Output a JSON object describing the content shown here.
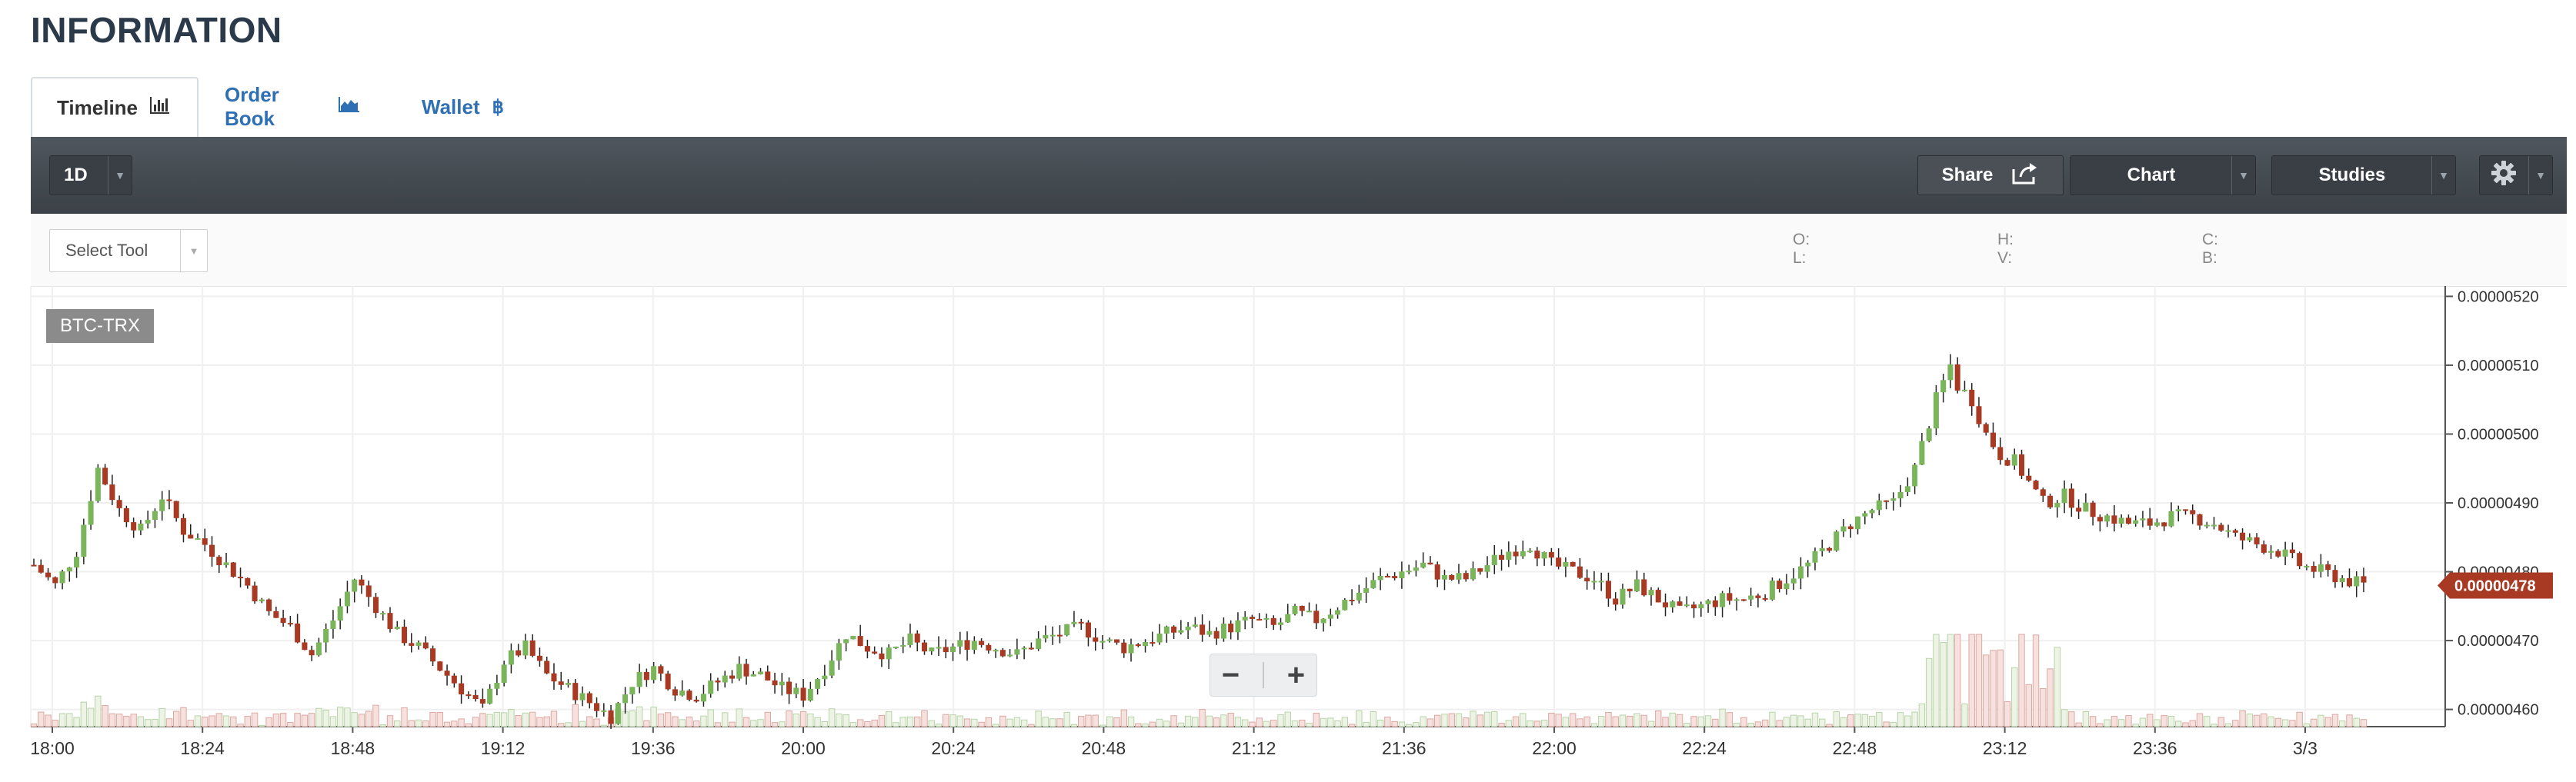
{
  "page": {
    "title": "INFORMATION"
  },
  "tabs": [
    {
      "label": "Timeline",
      "icon": "bar-chart-icon",
      "active": true
    },
    {
      "label": "Order Book",
      "icon": "area-chart-icon",
      "active": false
    },
    {
      "label": "Wallet",
      "icon": "bitcoin-icon",
      "active": false
    }
  ],
  "toolbar": {
    "period": "1D",
    "share": "Share",
    "chart": "Chart",
    "studies": "Studies"
  },
  "subbar": {
    "select_tool": "Select Tool",
    "ohlc": {
      "o": "O:",
      "h": "H:",
      "c": "C:",
      "l": "L:",
      "v": "V:",
      "b": "B:"
    }
  },
  "chart_data": {
    "type": "candlestick",
    "symbol": "BTC-TRX",
    "current_price": "0.00000478",
    "y_ticks": [
      "0.00000520",
      "0.00000510",
      "0.00000500",
      "0.00000490",
      "0.00000480",
      "0.00000470",
      "0.00000460"
    ],
    "ylim": [
      4.575e-06,
      5.215e-06
    ],
    "x_ticks": [
      "18:00",
      "18:24",
      "18:48",
      "19:12",
      "19:36",
      "20:00",
      "20:24",
      "20:48",
      "21:12",
      "21:36",
      "22:00",
      "22:24",
      "22:48",
      "23:12",
      "23:36",
      "3/3"
    ],
    "close_path": [
      [
        0,
        481
      ],
      [
        3,
        478
      ],
      [
        6,
        483
      ],
      [
        9,
        495
      ],
      [
        12,
        489
      ],
      [
        15,
        486
      ],
      [
        18,
        491
      ],
      [
        21,
        486
      ],
      [
        24,
        484
      ],
      [
        27,
        481
      ],
      [
        30,
        478
      ],
      [
        33,
        474
      ],
      [
        36,
        472
      ],
      [
        39,
        468
      ],
      [
        42,
        473
      ],
      [
        45,
        479
      ],
      [
        48,
        475
      ],
      [
        51,
        471
      ],
      [
        54,
        469
      ],
      [
        57,
        466
      ],
      [
        60,
        463
      ],
      [
        63,
        460
      ],
      [
        66,
        467
      ],
      [
        69,
        469
      ],
      [
        72,
        465
      ],
      [
        75,
        463
      ],
      [
        78,
        461
      ],
      [
        81,
        459
      ],
      [
        84,
        464
      ],
      [
        87,
        466
      ],
      [
        90,
        463
      ],
      [
        93,
        462
      ],
      [
        96,
        464
      ],
      [
        99,
        466
      ],
      [
        102,
        465
      ],
      [
        105,
        463
      ],
      [
        108,
        462
      ],
      [
        111,
        466
      ],
      [
        114,
        471
      ],
      [
        117,
        469
      ],
      [
        120,
        468
      ],
      [
        123,
        470
      ],
      [
        126,
        468
      ],
      [
        129,
        469
      ],
      [
        132,
        470
      ],
      [
        135,
        469
      ],
      [
        138,
        468
      ],
      [
        141,
        470
      ],
      [
        144,
        471
      ],
      [
        147,
        472
      ],
      [
        150,
        470
      ],
      [
        153,
        469
      ],
      [
        156,
        470
      ],
      [
        159,
        471
      ],
      [
        162,
        472
      ],
      [
        165,
        471
      ],
      [
        168,
        472
      ],
      [
        171,
        473
      ],
      [
        174,
        472
      ],
      [
        177,
        474
      ],
      [
        180,
        473
      ],
      [
        183,
        475
      ],
      [
        186,
        477
      ],
      [
        189,
        479
      ],
      [
        192,
        480
      ],
      [
        195,
        481
      ],
      [
        198,
        479
      ],
      [
        201,
        479
      ],
      [
        204,
        481
      ],
      [
        207,
        483
      ],
      [
        210,
        484
      ],
      [
        213,
        481
      ],
      [
        216,
        480
      ],
      [
        219,
        479
      ],
      [
        222,
        476
      ],
      [
        225,
        478
      ],
      [
        228,
        476
      ],
      [
        231,
        474
      ],
      [
        234,
        475
      ],
      [
        237,
        476
      ],
      [
        240,
        476
      ],
      [
        243,
        477
      ],
      [
        246,
        479
      ],
      [
        249,
        481
      ],
      [
        252,
        484
      ],
      [
        255,
        487
      ],
      [
        258,
        489
      ],
      [
        261,
        490
      ],
      [
        264,
        495
      ],
      [
        267,
        505
      ],
      [
        269,
        510
      ],
      [
        270,
        507
      ],
      [
        272,
        505
      ],
      [
        274,
        500
      ],
      [
        276,
        497
      ],
      [
        278,
        496
      ],
      [
        280,
        493
      ],
      [
        282,
        490
      ],
      [
        285,
        491
      ],
      [
        288,
        489
      ],
      [
        291,
        488
      ],
      [
        294,
        487
      ],
      [
        297,
        487
      ],
      [
        300,
        488
      ],
      [
        303,
        488
      ],
      [
        306,
        487
      ],
      [
        309,
        485
      ],
      [
        312,
        484
      ],
      [
        315,
        483
      ],
      [
        318,
        481
      ],
      [
        321,
        480
      ],
      [
        324,
        479
      ],
      [
        327,
        478
      ]
    ]
  }
}
